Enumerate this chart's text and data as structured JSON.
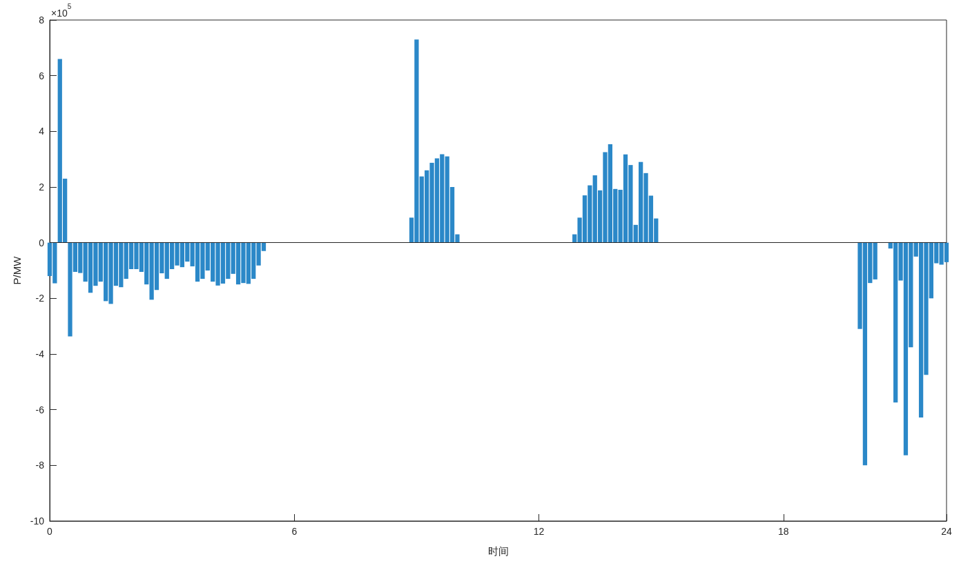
{
  "chart_data": {
    "type": "bar",
    "xlabel": "时间",
    "ylabel": "P/MW",
    "annotations": [
      "×10$^{5}$"
    ],
    "color": "#2b88c8",
    "grid": false,
    "ref_lines": [
      {
        "axis": "y",
        "value": 0,
        "color": "#262626"
      }
    ],
    "ylim": [
      -10,
      8
    ],
    "yticks": [
      -10,
      -8,
      -6,
      -4,
      -2,
      0,
      2,
      4,
      6,
      8
    ],
    "categories": [
      "0",
      null,
      null,
      null,
      null,
      null,
      null,
      null,
      null,
      null,
      null,
      null,
      null,
      null,
      null,
      null,
      null,
      null,
      null,
      null,
      null,
      null,
      null,
      null,
      null,
      null,
      null,
      null,
      null,
      null,
      null,
      null,
      null,
      null,
      null,
      null,
      null,
      null,
      null,
      null,
      null,
      null,
      null,
      null,
      null,
      null,
      null,
      null,
      "6",
      null,
      null,
      null,
      null,
      null,
      null,
      null,
      null,
      null,
      null,
      null,
      null,
      null,
      null,
      null,
      null,
      null,
      null,
      null,
      null,
      null,
      null,
      null,
      null,
      null,
      null,
      null,
      null,
      null,
      null,
      null,
      null,
      null,
      null,
      null,
      null,
      null,
      null,
      null,
      null,
      null,
      null,
      null,
      null,
      null,
      null,
      null,
      "12",
      null,
      null,
      null,
      null,
      null,
      null,
      null,
      null,
      null,
      null,
      null,
      null,
      null,
      null,
      null,
      null,
      null,
      null,
      null,
      null,
      null,
      null,
      null,
      null,
      null,
      null,
      null,
      null,
      null,
      null,
      null,
      null,
      null,
      null,
      null,
      null,
      null,
      null,
      null,
      null,
      null,
      null,
      null,
      null,
      null,
      null,
      null,
      "18",
      null,
      null,
      null,
      null,
      null,
      null,
      null,
      null,
      null,
      null,
      null,
      null,
      null,
      null,
      null,
      null,
      null,
      null,
      null,
      null,
      null,
      null,
      null,
      null,
      null,
      null,
      null,
      null,
      null,
      null,
      null,
      "24"
    ],
    "values": [
      -1.2,
      -1.46,
      6.6,
      2.3,
      -3.37,
      -1.05,
      -1.09,
      -1.4,
      -1.8,
      -1.55,
      -1.4,
      -2.1,
      -2.2,
      -1.55,
      -1.6,
      -1.3,
      -0.95,
      -0.95,
      -1.05,
      -1.5,
      -2.05,
      -1.7,
      -1.1,
      -1.3,
      -0.95,
      -0.82,
      -0.88,
      -0.68,
      -0.85,
      -1.4,
      -1.3,
      -1.0,
      -1.4,
      -1.54,
      -1.47,
      -1.3,
      -1.12,
      -1.5,
      -1.45,
      -1.48,
      -1.3,
      -0.82,
      -0.3,
      null,
      null,
      null,
      null,
      null,
      null,
      null,
      null,
      null,
      null,
      null,
      null,
      null,
      null,
      null,
      null,
      null,
      null,
      null,
      null,
      null,
      null,
      null,
      null,
      null,
      null,
      null,
      null,
      0.9,
      7.3,
      2.38,
      2.6,
      2.87,
      3.03,
      3.18,
      3.1,
      2.0,
      0.3,
      null,
      null,
      null,
      null,
      null,
      null,
      null,
      null,
      null,
      null,
      null,
      null,
      null,
      null,
      null,
      null,
      null,
      null,
      null,
      null,
      null,
      null,
      0.3,
      0.9,
      1.7,
      2.06,
      2.42,
      1.88,
      3.25,
      3.54,
      1.93,
      1.9,
      3.17,
      2.79,
      0.64,
      2.9,
      2.5,
      1.69,
      0.87,
      null,
      null,
      null,
      null,
      null,
      null,
      null,
      null,
      null,
      null,
      null,
      null,
      null,
      null,
      null,
      null,
      null,
      null,
      null,
      null,
      null,
      null,
      null,
      null,
      null,
      null,
      null,
      null,
      null,
      null,
      null,
      null,
      null,
      null,
      null,
      null,
      null,
      null,
      null,
      -3.1,
      -8.0,
      -1.45,
      -1.32,
      null,
      null,
      -0.21,
      -5.74,
      -1.36,
      -7.64,
      -3.76,
      -0.5,
      -6.28,
      -4.75,
      -2.0,
      -0.74,
      -0.79,
      -0.7
    ]
  }
}
